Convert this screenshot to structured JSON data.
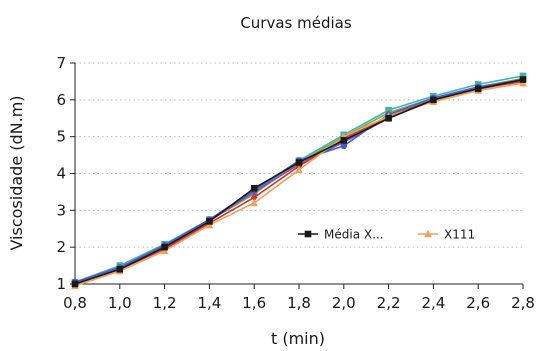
{
  "chart_data": {
    "type": "line",
    "title": "Curvas médias",
    "xlabel": "t (min)",
    "ylabel": "Viscosidade (dN.m)",
    "xlim": [
      0.8,
      2.8
    ],
    "ylim": [
      1,
      7
    ],
    "x": [
      0.8,
      1.0,
      1.2,
      1.4,
      1.6,
      1.8,
      2.0,
      2.2,
      2.4,
      2.6,
      2.8
    ],
    "x_tick_labels": [
      "0,8",
      "1,0",
      "1,2",
      "1,4",
      "1,6",
      "1,8",
      "2,0",
      "2,2",
      "2,4",
      "2,6",
      "2,8"
    ],
    "y_tick_labels": [
      "1",
      "2",
      "3",
      "4",
      "5",
      "6",
      "7"
    ],
    "grid": "horizontal dotted",
    "legend_position": "center-right",
    "series": [
      {
        "name": "Média X...",
        "color": "#1a1a1a",
        "marker": "square",
        "values": [
          1.0,
          1.4,
          2.0,
          2.7,
          3.6,
          4.3,
          4.9,
          5.5,
          6.0,
          6.3,
          6.55
        ]
      },
      {
        "name": "X111",
        "color": "#f0a15a",
        "marker": "triangle",
        "values": [
          0.95,
          1.35,
          1.9,
          2.6,
          3.2,
          4.1,
          5.0,
          5.55,
          5.95,
          6.25,
          6.45
        ]
      },
      {
        "name": "",
        "color": "#d2302c",
        "marker": "diamond",
        "values": [
          1.0,
          1.4,
          1.95,
          2.65,
          3.35,
          4.2,
          4.95,
          5.55,
          6.0,
          6.3,
          6.5
        ]
      },
      {
        "name": "",
        "color": "#4a5cc4",
        "marker": "circle",
        "values": [
          1.05,
          1.45,
          2.05,
          2.75,
          3.55,
          4.35,
          4.75,
          5.6,
          6.05,
          6.35,
          6.55
        ]
      },
      {
        "name": "",
        "color": "#7a55b8",
        "marker": "circle",
        "values": [
          1.0,
          1.42,
          2.0,
          2.72,
          3.5,
          4.25,
          4.85,
          5.5,
          6.0,
          6.32,
          6.55
        ]
      },
      {
        "name": "",
        "color": "#6fb13b",
        "marker": "circle",
        "values": [
          1.02,
          1.45,
          2.05,
          2.72,
          3.45,
          4.3,
          5.0,
          5.65,
          6.05,
          6.35,
          6.58
        ]
      },
      {
        "name": "",
        "color": "#47adc7",
        "marker": "square",
        "values": [
          1.05,
          1.5,
          2.08,
          2.75,
          3.5,
          4.35,
          5.05,
          5.72,
          6.1,
          6.42,
          6.65
        ]
      }
    ]
  }
}
